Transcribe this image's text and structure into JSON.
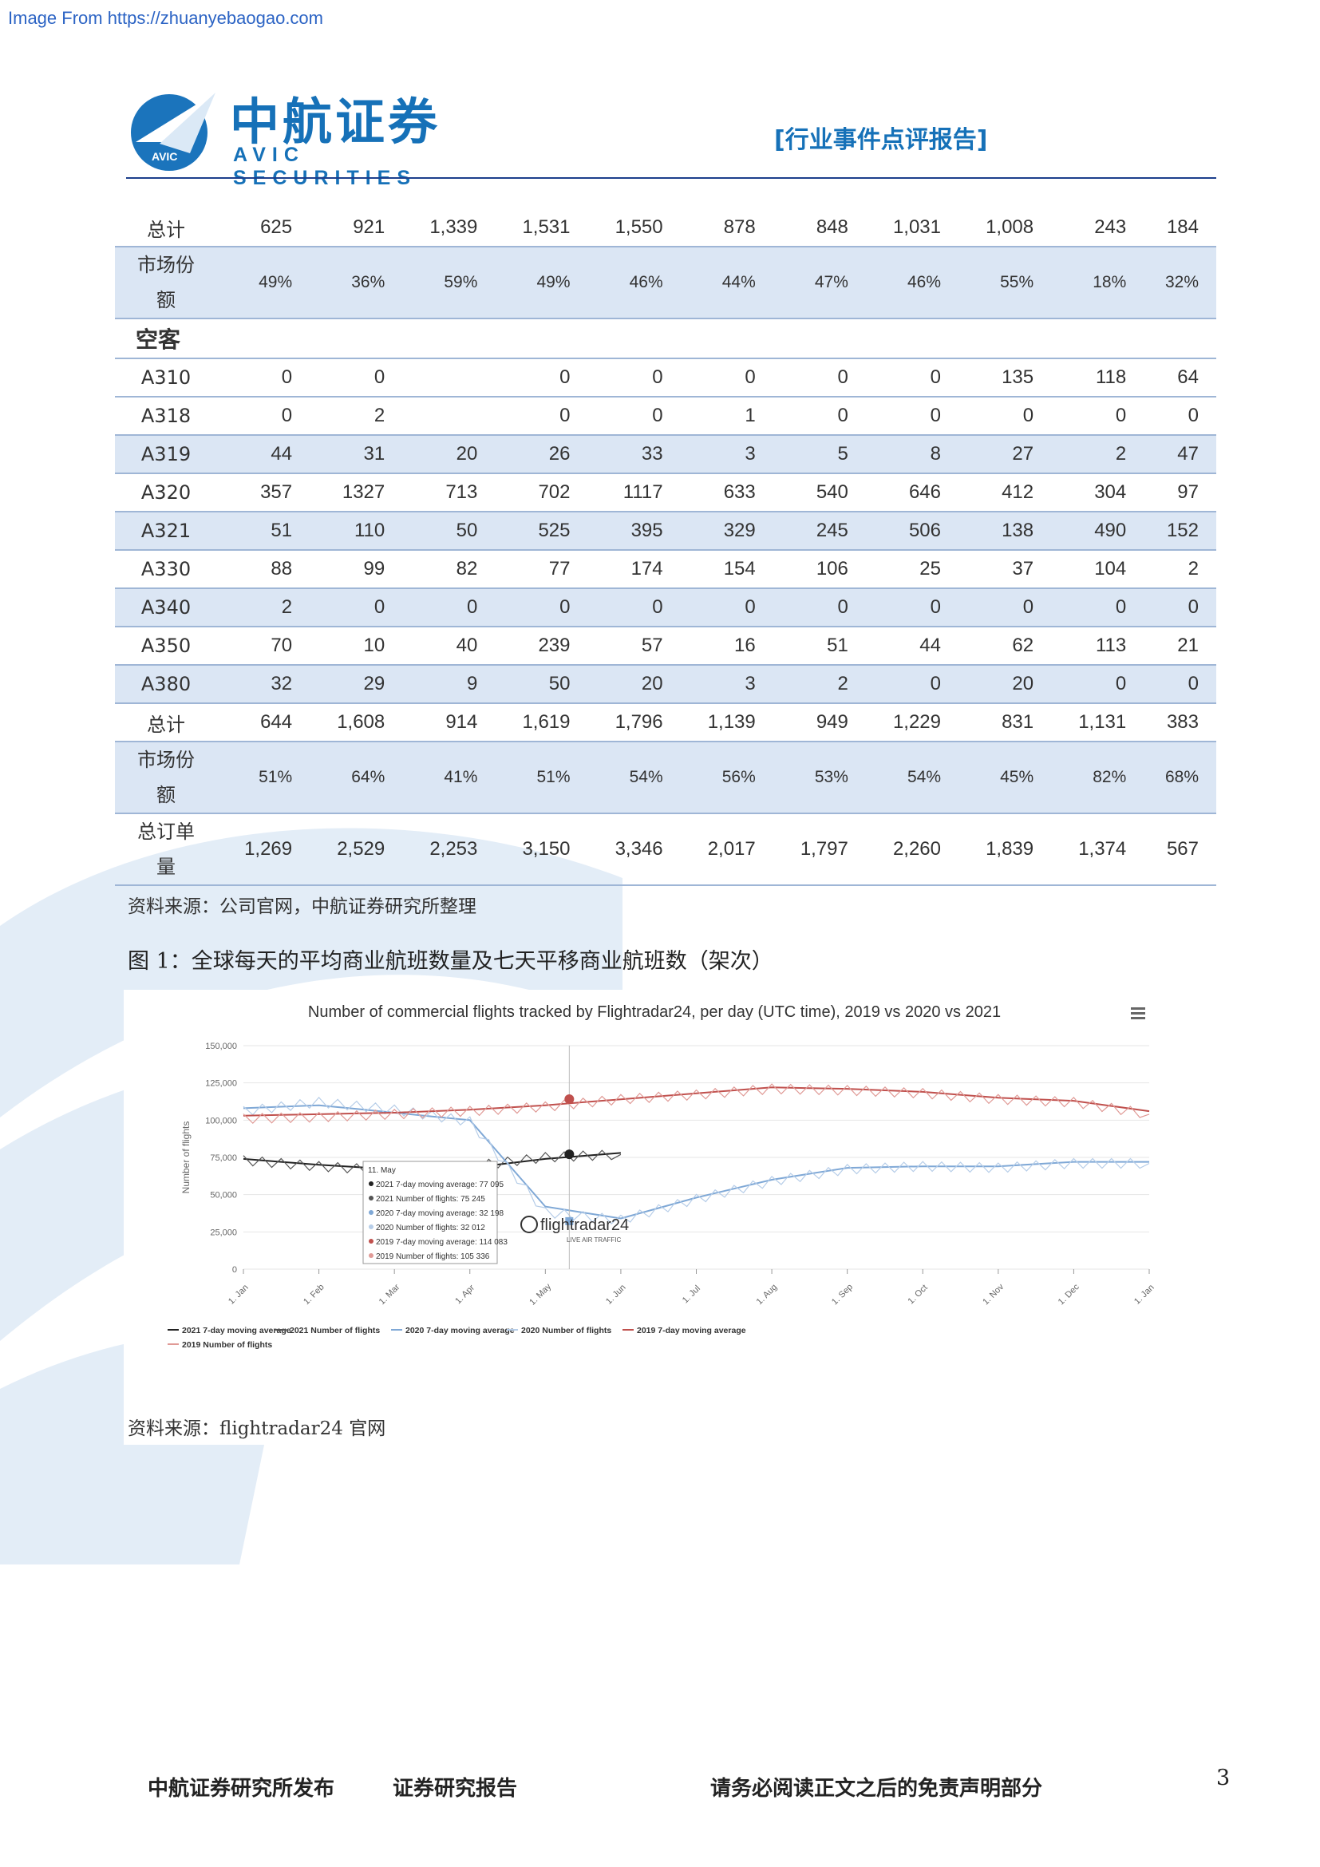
{
  "source_url": "Image From https://zhuanyebaogao.com",
  "header": {
    "logo_cn": "中航证券",
    "logo_en": "AVIC SECURITIES",
    "logo_badge": "AVIC",
    "report_type": "[行业事件点评报告]"
  },
  "table": {
    "rows_top": [
      {
        "label": "总计",
        "values": [
          "625",
          "921",
          "1,339",
          "1,531",
          "1,550",
          "878",
          "848",
          "1,031",
          "1,008",
          "243",
          "184"
        ]
      },
      {
        "label": "市场份额",
        "values": [
          "49%",
          "36%",
          "59%",
          "49%",
          "46%",
          "44%",
          "47%",
          "46%",
          "55%",
          "18%",
          "32%"
        ]
      }
    ],
    "category": "空客",
    "airbus_rows": [
      {
        "label": "A310",
        "values": [
          "0",
          "0",
          "",
          "0",
          "0",
          "0",
          "0",
          "0",
          "135",
          "118",
          "64"
        ]
      },
      {
        "label": "A318",
        "values": [
          "0",
          "2",
          "",
          "0",
          "0",
          "1",
          "0",
          "0",
          "0",
          "0",
          "0"
        ]
      },
      {
        "label": "A319",
        "values": [
          "44",
          "31",
          "20",
          "26",
          "33",
          "3",
          "5",
          "8",
          "27",
          "2",
          "47"
        ]
      },
      {
        "label": "A320",
        "values": [
          "357",
          "1327",
          "713",
          "702",
          "1117",
          "633",
          "540",
          "646",
          "412",
          "304",
          "97"
        ]
      },
      {
        "label": "A321",
        "values": [
          "51",
          "110",
          "50",
          "525",
          "395",
          "329",
          "245",
          "506",
          "138",
          "490",
          "152"
        ]
      },
      {
        "label": "A330",
        "values": [
          "88",
          "99",
          "82",
          "77",
          "174",
          "154",
          "106",
          "25",
          "37",
          "104",
          "2"
        ]
      },
      {
        "label": "A340",
        "values": [
          "2",
          "0",
          "0",
          "0",
          "0",
          "0",
          "0",
          "0",
          "0",
          "0",
          "0"
        ]
      },
      {
        "label": "A350",
        "values": [
          "70",
          "10",
          "40",
          "239",
          "57",
          "16",
          "51",
          "44",
          "62",
          "113",
          "21"
        ]
      },
      {
        "label": "A380",
        "values": [
          "32",
          "29",
          "9",
          "50",
          "20",
          "3",
          "2",
          "0",
          "20",
          "0",
          "0"
        ]
      }
    ],
    "airbus_total": {
      "label": "总计",
      "values": [
        "644",
        "1,608",
        "914",
        "1,619",
        "1,796",
        "1,139",
        "949",
        "1,229",
        "831",
        "1,131",
        "383"
      ]
    },
    "airbus_share": {
      "label": "市场份额",
      "values": [
        "51%",
        "64%",
        "41%",
        "51%",
        "54%",
        "56%",
        "53%",
        "54%",
        "45%",
        "82%",
        "68%"
      ]
    },
    "total_orders": {
      "label": "总订单量",
      "values": [
        "1,269",
        "2,529",
        "2,253",
        "3,150",
        "3,346",
        "2,017",
        "1,797",
        "2,260",
        "1,839",
        "1,374",
        "567"
      ]
    }
  },
  "note_table": "资料来源：公司官网，中航证券研究所整理",
  "figure_title": "图 1：全球每天的平均商业航班数量及七天平移商业航班数（架次）",
  "note_figure": "资料来源：flightradar24 官网",
  "chart_data": {
    "type": "line",
    "title": "Number of commercial flights tracked by Flightradar24, per day (UTC time), 2019 vs 2020 vs 2021",
    "ylabel": "Number of flights",
    "xlabel": "",
    "ylim": [
      0,
      150000
    ],
    "yticks": [
      "0",
      "25,000",
      "50,000",
      "75,000",
      "100,000",
      "125,000",
      "150,000"
    ],
    "x": [
      "1. Jan",
      "1. Feb",
      "1. Mar",
      "1. Apr",
      "1. May",
      "1. Jun",
      "1. Jul",
      "1. Aug",
      "1. Sep",
      "1. Oct",
      "1. Nov",
      "1. Dec",
      "1. Jan"
    ],
    "series": [
      {
        "name": "2021 7-day moving average",
        "color": "#222222",
        "values": [
          74000,
          70000,
          67000,
          68000,
          74000,
          78000,
          null,
          null,
          null,
          null,
          null,
          null,
          null
        ]
      },
      {
        "name": "2021 Number of flights",
        "color": "#555555",
        "values": [
          73000,
          69000,
          66000,
          69000,
          75000,
          77000,
          null,
          null,
          null,
          null,
          null,
          null,
          null
        ]
      },
      {
        "name": "2020 7-day moving average",
        "color": "#7fa8d6",
        "values": [
          108000,
          110000,
          105000,
          100000,
          42000,
          34000,
          48000,
          60000,
          68000,
          69000,
          69000,
          72000,
          72000
        ]
      },
      {
        "name": "2020 Number of flights",
        "color": "#b6cde8",
        "values": [
          106000,
          112000,
          107000,
          99000,
          38000,
          33000,
          47000,
          59000,
          67000,
          69000,
          68000,
          71000,
          71000
        ]
      },
      {
        "name": "2019 7-day moving average",
        "color": "#c0504d",
        "values": [
          103000,
          104000,
          105000,
          107000,
          110000,
          114000,
          118000,
          122000,
          121000,
          119000,
          115000,
          113000,
          106000
        ]
      },
      {
        "name": "2019 Number of flights",
        "color": "#e09a96",
        "values": [
          101000,
          102000,
          104000,
          106000,
          109000,
          114000,
          117000,
          121000,
          120000,
          118000,
          114000,
          112000,
          104000
        ]
      }
    ],
    "legend_position": "bottom",
    "tooltip": {
      "title": "11. May",
      "lines": [
        "2021 7-day moving average: 77 095",
        "2021 Number of flights: 75 245",
        "2020 7-day moving average: 32 198",
        "2020 Number of flights: 32 012",
        "2019 7-day moving average: 114 083",
        "2019 Number of flights: 105 336"
      ]
    },
    "brand": "flightradar24",
    "brand_sub": "LIVE AIR TRAFFIC"
  },
  "footer": {
    "left": "中航证券研究所发布",
    "mid": "证券研究报告",
    "right": "请务必阅读正文之后的免责声明部分",
    "page": "3"
  }
}
